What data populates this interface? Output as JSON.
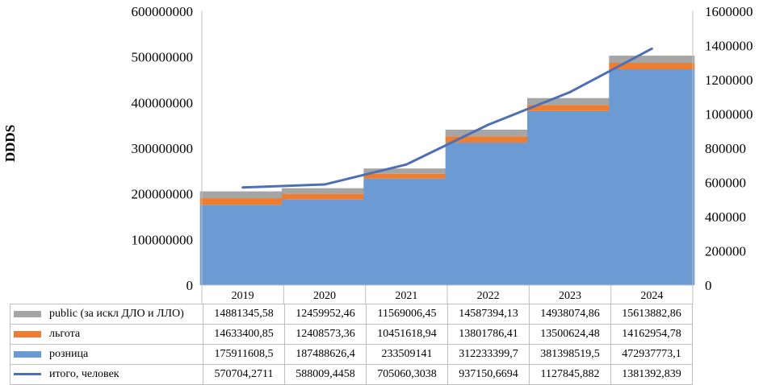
{
  "chart_data": {
    "type": "bar",
    "stacked": true,
    "categories": [
      "2019",
      "2020",
      "2021",
      "2022",
      "2023",
      "2024"
    ],
    "ylabel": "DDDS",
    "ylim": [
      0,
      600000000
    ],
    "y_ticks": [
      "0",
      "100000000",
      "200000000",
      "300000000",
      "400000000",
      "500000000",
      "600000000"
    ],
    "y2lim": [
      0,
      1600000
    ],
    "y2_ticks": [
      "0",
      "200000",
      "400000",
      "600000",
      "800000",
      "1000000",
      "1200000",
      "1400000",
      "1600000"
    ],
    "gridlines": false,
    "legend": "data table below chart",
    "series": [
      {
        "name": "public (за искл ДЛО и ЛЛО)",
        "kind": "bar",
        "axis": "left",
        "color": "#a5a5a5",
        "values": [
          14881345.58,
          12459952.46,
          11569006.45,
          14587394.13,
          14938074.86,
          15613882.86
        ],
        "labels": [
          "14881345,58",
          "12459952,46",
          "11569006,45",
          "14587394,13",
          "14938074,86",
          "15613882,86"
        ]
      },
      {
        "name": "льгота",
        "kind": "bar",
        "axis": "left",
        "color": "#ed7d31",
        "values": [
          14633400.85,
          12408573.36,
          10451618.94,
          13801786.41,
          13500624.48,
          14162954.78
        ],
        "labels": [
          "14633400,85",
          "12408573,36",
          "10451618,94",
          "13801786,41",
          "13500624,48",
          "14162954,78"
        ]
      },
      {
        "name": "розница",
        "kind": "bar",
        "axis": "left",
        "color": "#6b9bd2",
        "values": [
          175911608.5,
          187488626.4,
          233509141,
          312233399.7,
          381398519.5,
          472937773.1
        ],
        "labels": [
          "175911608,5",
          "187488626,4",
          "233509141",
          "312233399,7",
          "381398519,5",
          "472937773,1"
        ]
      },
      {
        "name": "итого, человек",
        "kind": "line",
        "axis": "right",
        "color": "#4f6fb5",
        "values": [
          570704.2711,
          588009.4458,
          705060.3038,
          937150.6694,
          1127845.882,
          1381392.839
        ],
        "labels": [
          "570704,2711",
          "588009,4458",
          "705060,3038",
          "937150,6694",
          "1127845,882",
          "1381392,839"
        ]
      }
    ]
  }
}
